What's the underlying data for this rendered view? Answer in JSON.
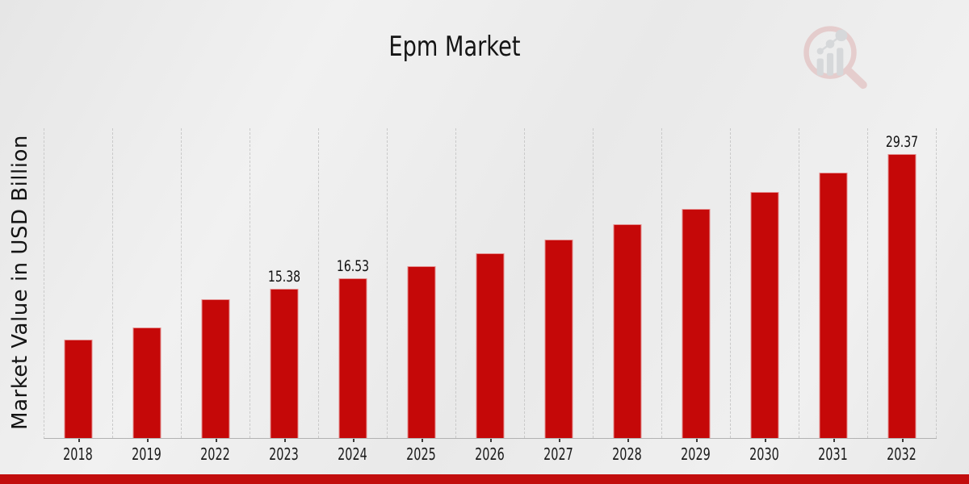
{
  "title": "Epm Market",
  "y_axis_title": "Market Value in USD Billion",
  "colors": {
    "bar": "#c50808",
    "bottom_band": "#c20d0d",
    "gridline": "#c9c9c9",
    "axis_line": "#b2b2b2",
    "text": "#141414",
    "background": "#ebebeb",
    "watermark_ring": "#dfb3b3",
    "watermark_bars": "#c5c7cb"
  },
  "watermark": {
    "name": "magnifier-growth-chart-logo"
  },
  "chart_data": {
    "type": "bar",
    "title": "Epm Market",
    "xlabel": "",
    "ylabel": "Market Value in USD Billion",
    "categories": [
      "2018",
      "2019",
      "2022",
      "2023",
      "2024",
      "2025",
      "2026",
      "2027",
      "2028",
      "2029",
      "2030",
      "2031",
      "2032"
    ],
    "values": [
      10.2,
      11.4,
      14.3,
      15.38,
      16.53,
      17.77,
      19.1,
      20.5,
      22.05,
      23.7,
      25.45,
      27.4,
      29.37
    ],
    "data_labels": [
      "",
      "",
      "",
      "15.38",
      "16.53",
      "",
      "",
      "",
      "",
      "",
      "",
      "",
      "29.37"
    ],
    "ylim": [
      0,
      32
    ],
    "bar_color": "#c50808",
    "grid": "vertical-dashed",
    "legend": "none",
    "value_unit": "USD Billion"
  }
}
